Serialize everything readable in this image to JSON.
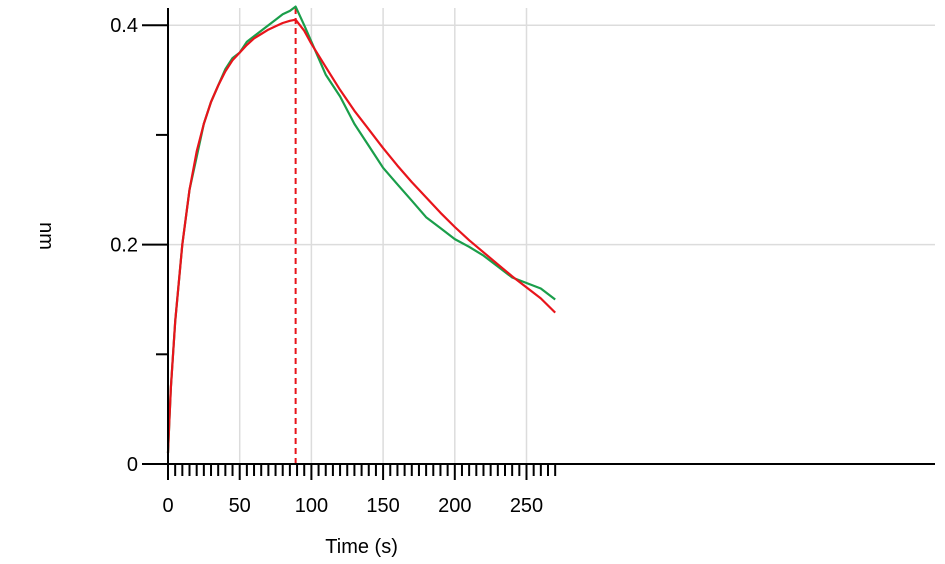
{
  "chart_data": {
    "type": "line",
    "title": "",
    "xlabel": "Time (s)",
    "ylabel": "nm",
    "xlim": [
      0,
      270
    ],
    "ylim": [
      0,
      0.42
    ],
    "x_ticks": [
      0,
      50,
      100,
      150,
      200,
      250
    ],
    "x_tick_labels": [
      "0",
      "50",
      "100",
      "150",
      "200",
      "250"
    ],
    "x_minor_step": 5,
    "y_ticks": [
      0,
      0.2,
      0.4
    ],
    "y_tick_labels": [
      "0",
      "0.2",
      "0.4"
    ],
    "y_minor_step": 0.1,
    "grid": true,
    "vertical_markers": [
      {
        "x": 0,
        "color": "#e8141b",
        "style": "dashed"
      },
      {
        "x": 89,
        "color": "#e8141b",
        "style": "dashed"
      }
    ],
    "series": [
      {
        "color": "#1a9e4a",
        "x": [
          0,
          1,
          2,
          5,
          10,
          15,
          20,
          25,
          30,
          35,
          40,
          45,
          50,
          55,
          60,
          65,
          70,
          75,
          80,
          85,
          89,
          95,
          100,
          110,
          120,
          130,
          140,
          150,
          160,
          170,
          180,
          190,
          200,
          210,
          220,
          230,
          240,
          250,
          260,
          270
        ],
        "y": [
          0.01,
          0.04,
          0.07,
          0.13,
          0.2,
          0.25,
          0.28,
          0.31,
          0.33,
          0.345,
          0.36,
          0.37,
          0.375,
          0.385,
          0.39,
          0.395,
          0.4,
          0.405,
          0.41,
          0.413,
          0.417,
          0.4,
          0.385,
          0.355,
          0.335,
          0.31,
          0.29,
          0.27,
          0.255,
          0.24,
          0.225,
          0.215,
          0.205,
          0.198,
          0.19,
          0.18,
          0.17,
          0.165,
          0.16,
          0.15
        ]
      },
      {
        "color": "#e8141b",
        "x": [
          0,
          1,
          2,
          5,
          10,
          15,
          20,
          25,
          30,
          35,
          40,
          45,
          50,
          55,
          60,
          65,
          70,
          75,
          80,
          85,
          89,
          95,
          100,
          110,
          120,
          130,
          140,
          150,
          160,
          170,
          180,
          190,
          200,
          210,
          220,
          230,
          240,
          250,
          260,
          270
        ],
        "y": [
          0.01,
          0.04,
          0.07,
          0.13,
          0.2,
          0.25,
          0.285,
          0.31,
          0.33,
          0.345,
          0.358,
          0.368,
          0.375,
          0.382,
          0.388,
          0.392,
          0.396,
          0.399,
          0.402,
          0.404,
          0.405,
          0.395,
          0.383,
          0.362,
          0.341,
          0.322,
          0.305,
          0.288,
          0.272,
          0.257,
          0.243,
          0.229,
          0.216,
          0.204,
          0.193,
          0.182,
          0.171,
          0.161,
          0.151,
          0.138
        ]
      }
    ]
  }
}
